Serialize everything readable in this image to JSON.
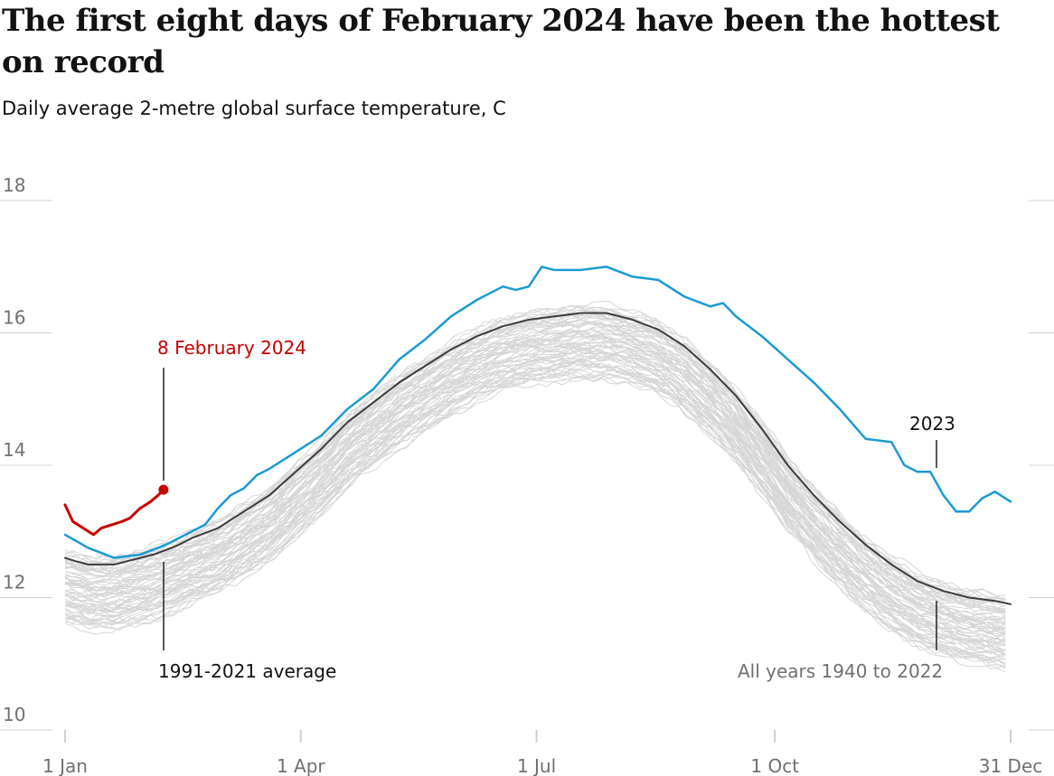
{
  "title": "The first eight days of February 2024 have been the hottest on record",
  "subtitle": "Daily average 2-metre global surface temperature, C",
  "colors": {
    "highlight_2024": "#c70000",
    "line_2023": "#1a9ad6",
    "average": "#3c3c3c",
    "all_years": "#d6d6d6",
    "grid": "#d0d0d0",
    "tick_text": "#707070"
  },
  "chart_data": {
    "type": "line",
    "title": "The first eight days of February 2024 have been the hottest on record",
    "ylabel": "",
    "xlabel": "",
    "ylim": [
      10,
      18
    ],
    "xlim_days": [
      1,
      366
    ],
    "yticks": [
      10,
      12,
      14,
      16,
      18
    ],
    "ytick_labels": [
      "10",
      "12",
      "14",
      "16",
      "18"
    ],
    "x_ticks": [
      {
        "day": 1,
        "label": "1 Jan"
      },
      {
        "day": 92,
        "label": "1 Apr"
      },
      {
        "day": 183,
        "label": "1 Jul"
      },
      {
        "day": 275,
        "label": "1 Oct"
      },
      {
        "day": 366,
        "label": "31 Dec"
      }
    ],
    "grid": true,
    "annotations": {
      "feb_2024": "8 February 2024",
      "label_2023": "2023",
      "label_average": "1991-2021 average",
      "label_all_years": "All years 1940 to 2022"
    },
    "series": [
      {
        "name": "2024",
        "x": [
          1,
          4,
          8,
          12,
          15,
          19,
          23,
          26,
          30,
          34,
          37,
          39
        ],
        "y": [
          13.4,
          13.15,
          13.05,
          12.95,
          13.05,
          13.1,
          13.15,
          13.2,
          13.35,
          13.45,
          13.55,
          13.63
        ]
      },
      {
        "name": "2023",
        "x": [
          1,
          10,
          20,
          30,
          40,
          50,
          55,
          60,
          65,
          70,
          75,
          80,
          90,
          100,
          110,
          120,
          130,
          140,
          150,
          160,
          170,
          175,
          180,
          185,
          190,
          200,
          210,
          220,
          230,
          240,
          250,
          255,
          260,
          270,
          280,
          290,
          300,
          310,
          320,
          325,
          330,
          335,
          340,
          345,
          350,
          355,
          360,
          366
        ],
        "y": [
          12.95,
          12.75,
          12.6,
          12.65,
          12.8,
          13.0,
          13.1,
          13.35,
          13.55,
          13.65,
          13.85,
          13.95,
          14.2,
          14.45,
          14.85,
          15.15,
          15.6,
          15.9,
          16.25,
          16.5,
          16.7,
          16.65,
          16.7,
          17.0,
          16.95,
          16.95,
          17.0,
          16.85,
          16.8,
          16.55,
          16.4,
          16.45,
          16.25,
          15.95,
          15.6,
          15.25,
          14.85,
          14.4,
          14.35,
          14.0,
          13.9,
          13.9,
          13.55,
          13.3,
          13.3,
          13.5,
          13.6,
          13.45
        ]
      },
      {
        "name": "1991-2021 average",
        "x": [
          1,
          5,
          10,
          15,
          20,
          25,
          30,
          35,
          40,
          45,
          50,
          60,
          70,
          80,
          90,
          100,
          110,
          120,
          130,
          140,
          150,
          160,
          170,
          180,
          190,
          200,
          210,
          220,
          230,
          240,
          250,
          260,
          270,
          280,
          290,
          300,
          310,
          320,
          330,
          340,
          350,
          360,
          366
        ],
        "y": [
          12.6,
          12.55,
          12.5,
          12.5,
          12.5,
          12.55,
          12.6,
          12.65,
          12.72,
          12.8,
          12.9,
          13.05,
          13.3,
          13.55,
          13.9,
          14.25,
          14.65,
          14.95,
          15.25,
          15.5,
          15.75,
          15.95,
          16.1,
          16.2,
          16.25,
          16.3,
          16.3,
          16.2,
          16.05,
          15.8,
          15.45,
          15.05,
          14.55,
          14.0,
          13.55,
          13.15,
          12.8,
          12.5,
          12.25,
          12.1,
          12.0,
          11.95,
          11.9
        ]
      }
    ]
  }
}
